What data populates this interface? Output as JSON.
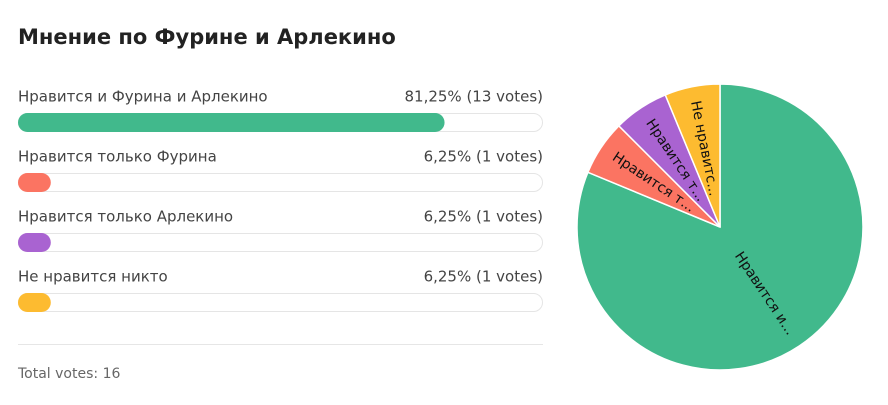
{
  "title": "Мнение по Фурине и Арлекино",
  "options": [
    {
      "label": "Нравится и Фурина и Арлекино",
      "result": "81,25% (13 votes)",
      "percent": 81.25,
      "color": "#41b98c"
    },
    {
      "label": "Нравится только Фурина",
      "result": "6,25% (1 votes)",
      "percent": 6.25,
      "color": "#fb7462"
    },
    {
      "label": "Нравится только Арлекино",
      "result": "6,25% (1 votes)",
      "percent": 6.25,
      "color": "#a963d1"
    },
    {
      "label": "Не нравится никто",
      "result": "6,25% (1 votes)",
      "percent": 6.25,
      "color": "#fdbb30"
    }
  ],
  "pie_labels": [
    "Нравится и...",
    "Нравится т...",
    "Нравится т...",
    "Не нравитс..."
  ],
  "total_label": "Total votes:",
  "total_votes": 16
}
